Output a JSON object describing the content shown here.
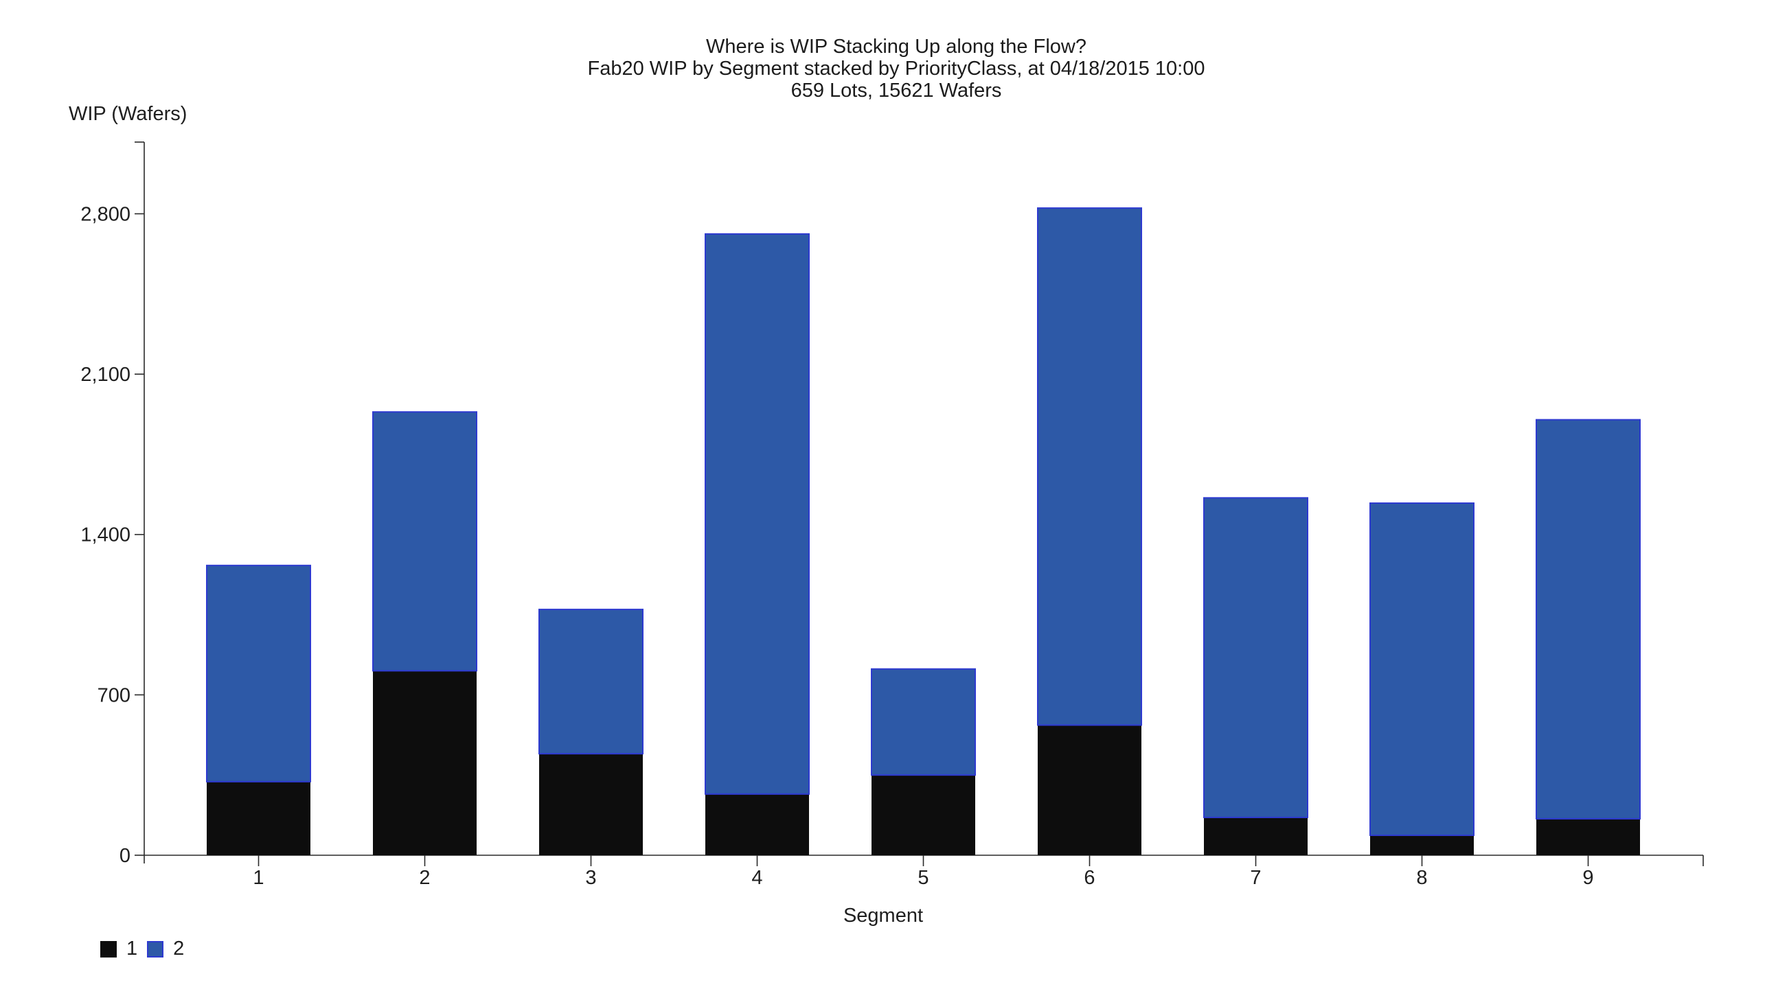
{
  "chart_data": {
    "type": "bar",
    "stacked": true,
    "title": "Where is WIP Stacking Up along the Flow?",
    "subtitle": "Fab20 WIP by Segment stacked by PriorityClass, at 04/18/2015 10:00",
    "subtitle2": "659 Lots, 15621 Wafers",
    "xlabel": "Segment",
    "ylabel": "WIP (Wafers)",
    "categories": [
      "1",
      "2",
      "3",
      "4",
      "5",
      "6",
      "7",
      "8",
      "9"
    ],
    "series": [
      {
        "name": "1",
        "label": "PriorityClass 1",
        "color": "#0d0d0d",
        "values": [
          321,
          805,
          443,
          267,
          350,
          568,
          165,
          87,
          159
        ]
      },
      {
        "name": "2",
        "label": "PriorityClass 2",
        "color": "#2d59a7",
        "border": "#2e3ad0",
        "values": [
          944,
          1130,
          630,
          2445,
          463,
          2257,
          1395,
          1450,
          1742
        ]
      }
    ],
    "totals": [
      1265,
      1935,
      1073,
      2712,
      813,
      2825,
      1560,
      1537,
      1901
    ],
    "total_wafers": 15621,
    "total_lots": 659,
    "y_ticks": {
      "labels": [
        "0",
        "700",
        "1,400",
        "2,100",
        "2,800"
      ],
      "values": [
        0,
        700,
        1400,
        2100,
        2800
      ]
    },
    "ylim": [
      0,
      3113
    ],
    "grid": false,
    "legend_position": "bottom-left"
  },
  "colors": {
    "background": "#ffffff",
    "axis": "#2a2a2a",
    "text": "#1f1f1f",
    "series1_black": "#0d0d0d",
    "series2_blue": "#2d59a7",
    "series2_border": "#2e3ad0"
  }
}
